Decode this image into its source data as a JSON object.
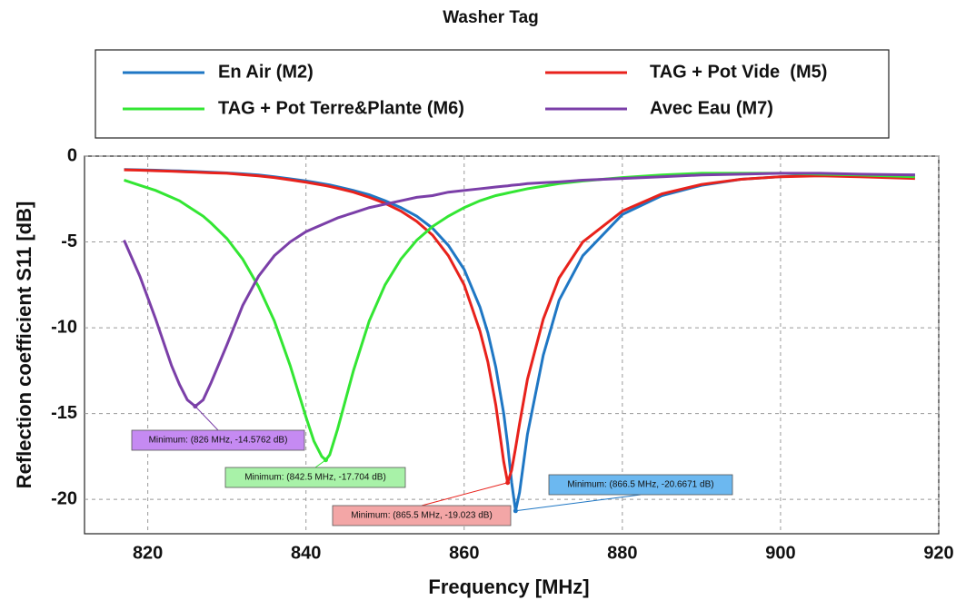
{
  "chart_data": {
    "type": "line",
    "title": "Washer Tag",
    "x_label": "Frequency [MHz]",
    "y_label": "Reflection coefficient S11 [dB]",
    "xlim": [
      812,
      920
    ],
    "ylim": [
      -22,
      0
    ],
    "xticks": [
      820,
      840,
      860,
      880,
      900,
      920
    ],
    "yticks": [
      0,
      -5,
      -10,
      -15,
      -20
    ],
    "grid": true,
    "x": [
      817,
      819,
      821,
      823,
      824,
      825,
      826,
      827,
      828,
      830,
      832,
      834,
      836,
      838,
      840,
      841,
      842,
      842.5,
      843,
      844,
      846,
      848,
      850,
      852,
      854,
      856,
      858,
      860,
      862,
      863,
      864,
      865,
      865.5,
      866,
      866.5,
      867,
      868,
      870,
      872,
      875,
      880,
      885,
      890,
      895,
      900,
      905,
      910,
      917
    ],
    "series": [
      {
        "name": "En Air (M2)",
        "color": "#1f77c4",
        "annotation": "Minimum: (866.5 MHz, -20.6671 dB)",
        "annotation_color": "#6cb8f0",
        "values": [
          -0.78,
          -0.8,
          -0.82,
          -0.85,
          -0.86,
          -0.88,
          -0.9,
          -0.92,
          -0.94,
          -0.98,
          -1.03,
          -1.1,
          -1.2,
          -1.32,
          -1.45,
          -1.52,
          -1.6,
          -1.64,
          -1.68,
          -1.78,
          -2.0,
          -2.25,
          -2.6,
          -3.0,
          -3.5,
          -4.2,
          -5.2,
          -6.6,
          -8.8,
          -10.3,
          -12.3,
          -15.0,
          -16.8,
          -19.0,
          -20.6671,
          -19.6,
          -16.2,
          -11.6,
          -8.4,
          -5.8,
          -3.4,
          -2.3,
          -1.7,
          -1.35,
          -1.2,
          -1.1,
          -1.1,
          -1.1
        ]
      },
      {
        "name": "TAG + Pot Vide  (M5)",
        "color": "#e8221c",
        "annotation": "Minimum: (865.5 MHz, -19.023 dB)",
        "annotation_color": "#f3a6a6",
        "values": [
          -0.8,
          -0.82,
          -0.85,
          -0.88,
          -0.9,
          -0.92,
          -0.93,
          -0.95,
          -0.97,
          -1.0,
          -1.08,
          -1.15,
          -1.25,
          -1.38,
          -1.52,
          -1.6,
          -1.68,
          -1.72,
          -1.77,
          -1.87,
          -2.1,
          -2.4,
          -2.75,
          -3.2,
          -3.8,
          -4.6,
          -5.8,
          -7.5,
          -10.2,
          -12.0,
          -14.5,
          -17.8,
          -19.023,
          -18.3,
          -17.0,
          -15.6,
          -13.0,
          -9.5,
          -7.1,
          -5.0,
          -3.2,
          -2.2,
          -1.65,
          -1.35,
          -1.2,
          -1.15,
          -1.2,
          -1.3
        ]
      },
      {
        "name": "TAG + Pot Terre&Plante (M6)",
        "color": "#33e633",
        "annotation": "Minimum: (842.5 MHz, -17.704 dB)",
        "annotation_color": "#a8f2a8",
        "values": [
          -1.4,
          -1.7,
          -2.0,
          -2.4,
          -2.6,
          -2.9,
          -3.2,
          -3.5,
          -3.9,
          -4.8,
          -6.0,
          -7.6,
          -9.6,
          -12.2,
          -15.2,
          -16.6,
          -17.5,
          -17.704,
          -17.4,
          -15.9,
          -12.5,
          -9.6,
          -7.5,
          -6.0,
          -4.9,
          -4.1,
          -3.5,
          -3.0,
          -2.6,
          -2.45,
          -2.3,
          -2.2,
          -2.15,
          -2.1,
          -2.05,
          -2.0,
          -1.9,
          -1.75,
          -1.6,
          -1.45,
          -1.25,
          -1.1,
          -1.0,
          -1.0,
          -1.0,
          -1.05,
          -1.1,
          -1.2
        ]
      },
      {
        "name": "Avec Eau (M7)",
        "color": "#7b3fa8",
        "annotation": "Minimum: (826 MHz, -14.5762 dB)",
        "annotation_color": "#c58af2",
        "values": [
          -4.9,
          -7.0,
          -9.5,
          -12.2,
          -13.3,
          -14.2,
          -14.5762,
          -14.2,
          -13.2,
          -11.0,
          -8.7,
          -7.0,
          -5.8,
          -5.0,
          -4.4,
          -4.2,
          -4.0,
          -3.9,
          -3.8,
          -3.6,
          -3.3,
          -3.0,
          -2.8,
          -2.6,
          -2.4,
          -2.3,
          -2.1,
          -2.0,
          -1.9,
          -1.85,
          -1.8,
          -1.75,
          -1.73,
          -1.7,
          -1.68,
          -1.66,
          -1.6,
          -1.55,
          -1.5,
          -1.4,
          -1.3,
          -1.2,
          -1.1,
          -1.05,
          -1.0,
          -1.0,
          -1.05,
          -1.1
        ]
      }
    ]
  }
}
